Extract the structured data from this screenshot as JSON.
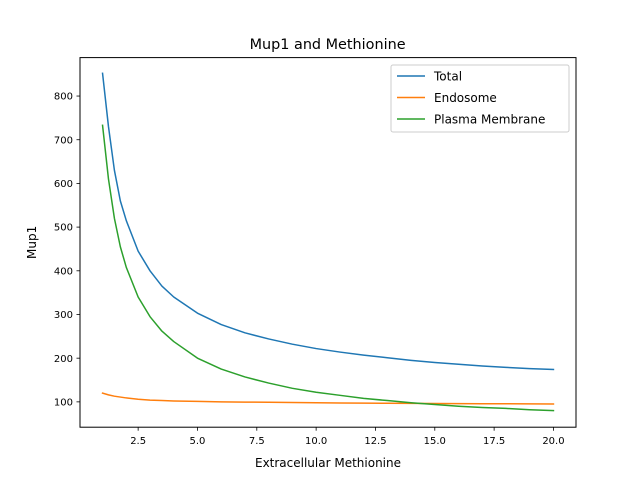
{
  "chart_data": {
    "type": "line",
    "title": "Mup1 and Methionine",
    "xlabel": "Extracellular Methionine",
    "ylabel": "Mup1",
    "xlim": [
      0.05,
      20.95
    ],
    "ylim": [
      42,
      888
    ],
    "xticks": [
      2.5,
      5.0,
      7.5,
      10.0,
      12.5,
      15.0,
      17.5,
      20.0
    ],
    "xtick_labels": [
      "2.5",
      "5.0",
      "7.5",
      "10.0",
      "12.5",
      "15.0",
      "17.5",
      "20.0"
    ],
    "yticks": [
      100,
      200,
      300,
      400,
      500,
      600,
      700,
      800
    ],
    "ytick_labels": [
      "100",
      "200",
      "300",
      "400",
      "500",
      "600",
      "700",
      "800"
    ],
    "grid": false,
    "legend": "top-right",
    "x": [
      1.0,
      1.25,
      1.5,
      1.75,
      2.0,
      2.5,
      3.0,
      3.5,
      4.0,
      5.0,
      6.0,
      7.0,
      8.0,
      9.0,
      10.0,
      11.0,
      12.0,
      13.0,
      14.0,
      15.0,
      16.0,
      17.0,
      18.0,
      19.0,
      20.0
    ],
    "series": [
      {
        "name": "Total",
        "color": "#1f77b4",
        "values": [
          852,
          730,
          630,
          560,
          515,
          445,
          400,
          365,
          340,
          303,
          277,
          258,
          244,
          232,
          222,
          214,
          207,
          201,
          195,
          190,
          186,
          182,
          179,
          176,
          174
        ]
      },
      {
        "name": "Endosome",
        "color": "#ff7f0e",
        "values": [
          120,
          116,
          113,
          111,
          109,
          106,
          104,
          103,
          102,
          101,
          100,
          99.5,
          99,
          98.5,
          98,
          97.5,
          97,
          96.8,
          96.5,
          96.2,
          96,
          95.8,
          95.6,
          95.4,
          95.2
        ]
      },
      {
        "name": "Plasma Membrane",
        "color": "#2ca02c",
        "values": [
          733,
          610,
          520,
          455,
          408,
          340,
          295,
          262,
          238,
          200,
          175,
          157,
          143,
          131,
          122,
          115,
          108,
          103,
          98,
          94,
          90,
          87,
          85,
          82,
          80
        ]
      }
    ]
  }
}
